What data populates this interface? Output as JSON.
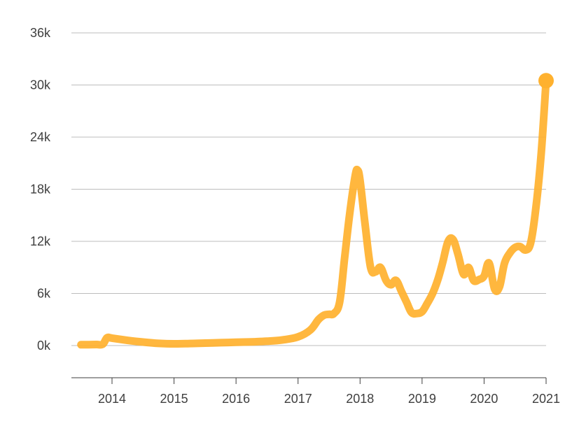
{
  "chart_data": {
    "type": "line",
    "title": "",
    "xlabel": "",
    "ylabel": "",
    "x_ticks": [
      "2014",
      "2015",
      "2016",
      "2017",
      "2018",
      "2019",
      "2020",
      "2021"
    ],
    "y_ticks": [
      "0k",
      "6k",
      "12k",
      "18k",
      "24k",
      "30k",
      "36k"
    ],
    "ylim": [
      -3600,
      36000
    ],
    "xlim": [
      2013.35,
      2021.0
    ],
    "grid": true,
    "legend": "none",
    "series_color": "#FFB12E",
    "series": [
      {
        "x": [
          2013.5,
          2013.6,
          2013.75,
          2013.85,
          2013.92,
          2014.0,
          2014.25,
          2014.5,
          2014.75,
          2015.0,
          2015.25,
          2015.5,
          2015.75,
          2016.0,
          2016.25,
          2016.5,
          2016.75,
          2017.0,
          2017.2,
          2017.33,
          2017.42,
          2017.5,
          2017.58,
          2017.67,
          2017.75,
          2017.83,
          2017.92,
          2017.96,
          2018.0,
          2018.08,
          2018.17,
          2018.25,
          2018.33,
          2018.42,
          2018.5,
          2018.58,
          2018.67,
          2018.75,
          2018.83,
          2018.92,
          2019.0,
          2019.08,
          2019.17,
          2019.25,
          2019.33,
          2019.42,
          2019.5,
          2019.58,
          2019.67,
          2019.75,
          2019.83,
          2019.92,
          2020.0,
          2020.08,
          2020.17,
          2020.25,
          2020.33,
          2020.42,
          2020.5,
          2020.58,
          2020.67,
          2020.75,
          2020.83,
          2020.92,
          2021.0
        ],
        "y": [
          100,
          100,
          120,
          150,
          900,
          850,
          600,
          400,
          250,
          200,
          230,
          280,
          330,
          380,
          430,
          500,
          650,
          1000,
          1800,
          3000,
          3500,
          3600,
          3700,
          5000,
          10000,
          15000,
          19500,
          20200,
          19000,
          14000,
          9000,
          8500,
          9000,
          7500,
          7000,
          7500,
          6200,
          5000,
          3800,
          3700,
          3900,
          4800,
          6000,
          7500,
          9500,
          12000,
          12200,
          10500,
          8200,
          9000,
          7500,
          7600,
          8000,
          9500,
          6500,
          6800,
          9500,
          10700,
          11300,
          11400,
          11000,
          11800,
          15500,
          22000,
          30500
        ]
      }
    ]
  }
}
